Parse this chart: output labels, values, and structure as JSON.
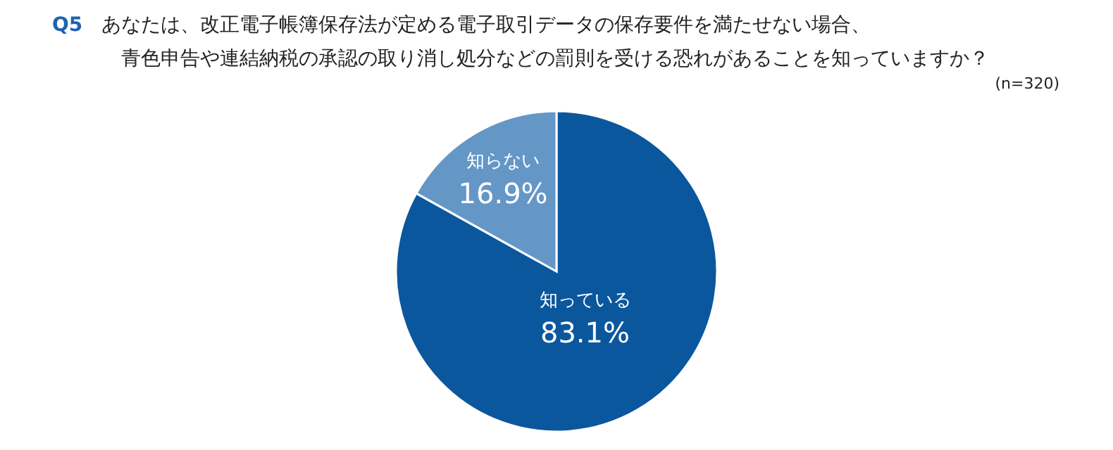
{
  "chart_data": {
    "type": "pie",
    "title": "Q5",
    "subtitle": [
      "あなたは、改正電子帳簿保存法が定める電子取引データの保存要件を満たせない場合、",
      "青色申告や連結納税の承認の取り消し処分などの罰則を受ける恐れがあることを知っていますか？"
    ],
    "annotations": [
      "(n=320)"
    ],
    "categories": [
      "知っている",
      "知らない"
    ],
    "values": [
      83.1,
      16.9
    ],
    "colors": [
      "#0b579d",
      "#6497c6"
    ],
    "value_labels": [
      "83.1%",
      "16.9%"
    ]
  }
}
